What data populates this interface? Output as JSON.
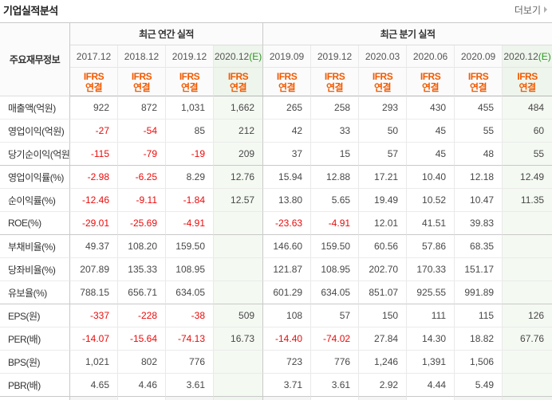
{
  "page": {
    "title": "기업실적분석",
    "more_label": "더보기"
  },
  "colors": {
    "ifrs_orange": "#f15a00",
    "estimate_green": "#2a9622",
    "negative_red": "#ea0b0b",
    "estimate_bg": "#f4f9f2"
  },
  "table": {
    "corner_label": "주요재무정보",
    "groups": [
      {
        "label": "최근 연간 실적",
        "span": 4
      },
      {
        "label": "최근 분기 실적",
        "span": 6
      }
    ],
    "estimate_suffix": "(E)",
    "standard_lines": [
      "IFRS",
      "연결"
    ],
    "columns": [
      {
        "period": "2017.12",
        "estimate": false
      },
      {
        "period": "2018.12",
        "estimate": false
      },
      {
        "period": "2019.12",
        "estimate": false
      },
      {
        "period": "2020.12",
        "estimate": true
      },
      {
        "period": "2019.09",
        "estimate": false
      },
      {
        "period": "2019.12",
        "estimate": false
      },
      {
        "period": "2020.03",
        "estimate": false
      },
      {
        "period": "2020.06",
        "estimate": false
      },
      {
        "period": "2020.09",
        "estimate": false
      },
      {
        "period": "2020.12",
        "estimate": true
      }
    ],
    "rows": [
      {
        "label": "매출액(억원)",
        "values": [
          "922",
          "872",
          "1,031",
          "1,662",
          "265",
          "258",
          "293",
          "430",
          "455",
          "484"
        ]
      },
      {
        "label": "영업이익(억원)",
        "values": [
          "-27",
          "-54",
          "85",
          "212",
          "42",
          "33",
          "50",
          "45",
          "55",
          "60"
        ]
      },
      {
        "label": "당기순이익(억원)",
        "values": [
          "-115",
          "-79",
          "-19",
          "209",
          "37",
          "15",
          "57",
          "45",
          "48",
          "55"
        ]
      },
      {
        "label": "영업이익률(%)",
        "values": [
          "-2.98",
          "-6.25",
          "8.29",
          "12.76",
          "15.94",
          "12.88",
          "17.21",
          "10.40",
          "12.18",
          "12.49"
        ]
      },
      {
        "label": "순이익률(%)",
        "values": [
          "-12.46",
          "-9.11",
          "-1.84",
          "12.57",
          "13.80",
          "5.65",
          "19.49",
          "10.52",
          "10.47",
          "11.35"
        ]
      },
      {
        "label": "ROE(%)",
        "values": [
          "-29.01",
          "-25.69",
          "-4.91",
          "",
          "-23.63",
          "-4.91",
          "12.01",
          "41.51",
          "39.83",
          ""
        ]
      },
      {
        "label": "부채비율(%)",
        "values": [
          "49.37",
          "108.20",
          "159.50",
          "",
          "146.60",
          "159.50",
          "60.56",
          "57.86",
          "68.35",
          ""
        ]
      },
      {
        "label": "당좌비율(%)",
        "values": [
          "207.89",
          "135.33",
          "108.95",
          "",
          "121.87",
          "108.95",
          "202.70",
          "170.33",
          "151.17",
          ""
        ]
      },
      {
        "label": "유보율(%)",
        "values": [
          "788.15",
          "656.71",
          "634.05",
          "",
          "601.29",
          "634.05",
          "851.07",
          "925.55",
          "991.89",
          ""
        ]
      },
      {
        "label": "EPS(원)",
        "values": [
          "-337",
          "-228",
          "-38",
          "509",
          "108",
          "57",
          "150",
          "111",
          "115",
          "126"
        ]
      },
      {
        "label": "PER(배)",
        "values": [
          "-14.07",
          "-15.64",
          "-74.13",
          "16.73",
          "-14.40",
          "-74.02",
          "27.84",
          "14.30",
          "18.82",
          "67.76"
        ]
      },
      {
        "label": "BPS(원)",
        "values": [
          "1,021",
          "802",
          "776",
          "",
          "723",
          "776",
          "1,246",
          "1,391",
          "1,506",
          ""
        ]
      },
      {
        "label": "PBR(배)",
        "values": [
          "4.65",
          "4.46",
          "3.61",
          "",
          "3.71",
          "3.61",
          "2.92",
          "4.44",
          "5.49",
          ""
        ]
      }
    ]
  }
}
